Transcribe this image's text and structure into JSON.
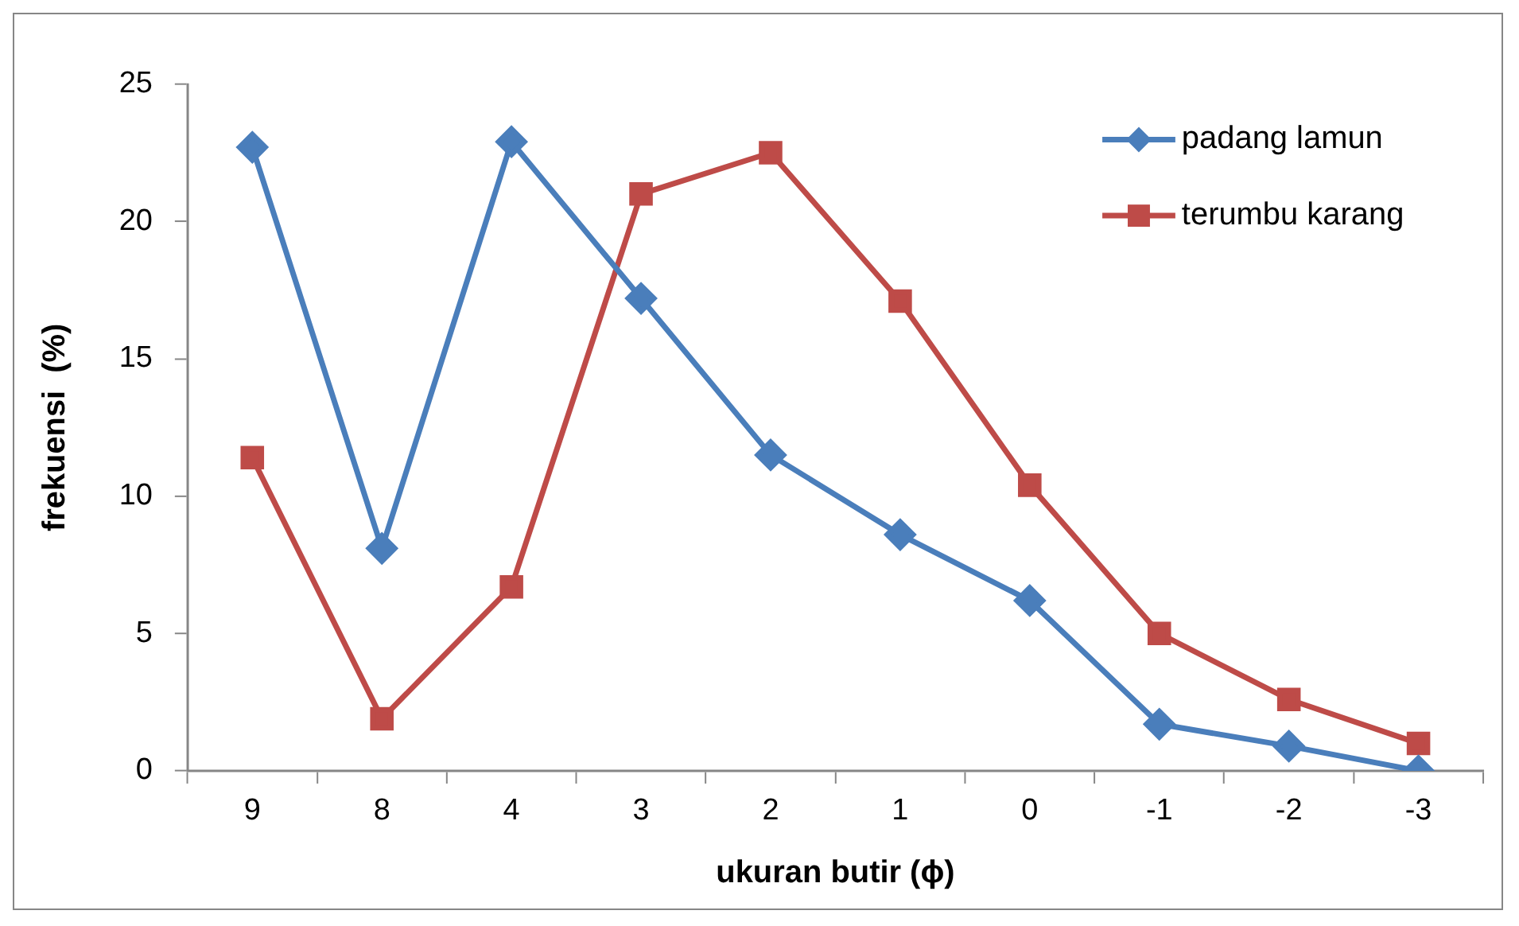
{
  "chart_data": {
    "type": "line",
    "xlabel": "ukuran butir (ϕ)",
    "ylabel": "frekuensi  (%)",
    "categories": [
      "9",
      "8",
      "4",
      "3",
      "2",
      "1",
      "0",
      "-1",
      "-2",
      "-3"
    ],
    "series": [
      {
        "name": "padang lamun",
        "color": "#4a7ebb",
        "marker": "diamond",
        "values": [
          22.7,
          8.1,
          22.9,
          17.2,
          11.5,
          8.6,
          6.2,
          1.7,
          0.9,
          0
        ]
      },
      {
        "name": "terumbu karang",
        "color": "#be4b48",
        "marker": "square",
        "values": [
          11.4,
          1.9,
          6.7,
          21.0,
          22.5,
          17.1,
          10.4,
          5.0,
          2.6,
          1.0
        ]
      }
    ],
    "ylim": [
      0,
      25
    ],
    "yticks": [
      0,
      5,
      10,
      15,
      20,
      25
    ],
    "grid": false,
    "legend": "top right",
    "line_style": "solid"
  }
}
